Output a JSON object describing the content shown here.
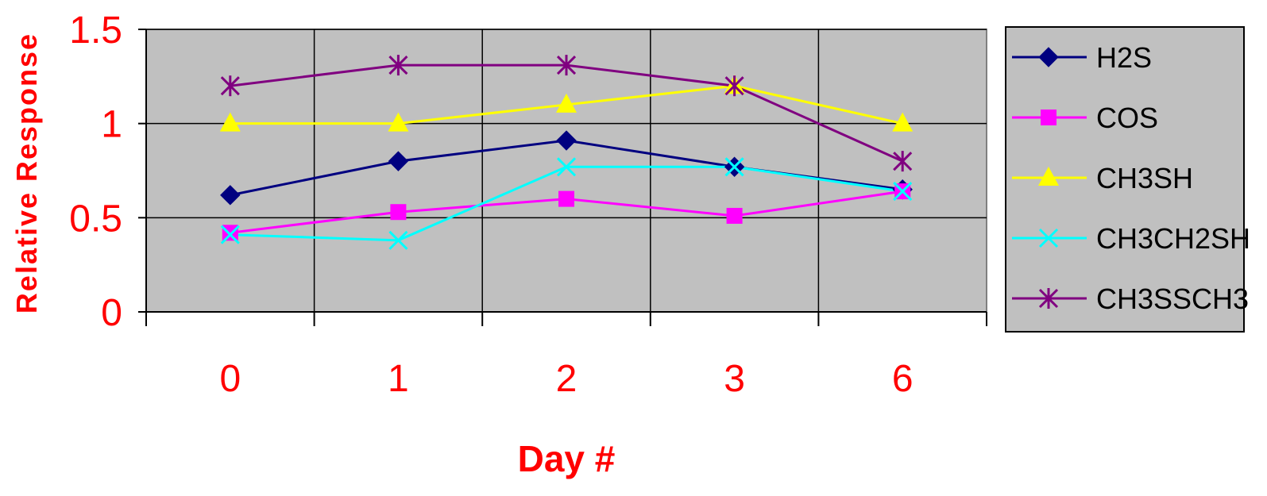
{
  "chart_data": {
    "type": "line",
    "title": "",
    "xlabel": "Day #",
    "ylabel": "Relative Response",
    "categories": [
      "0",
      "1",
      "2",
      "3",
      "6"
    ],
    "ylim": [
      0,
      1.5
    ],
    "yticks": [
      "0",
      "0.5",
      "1",
      "1.5"
    ],
    "grid": true,
    "legend_position": "right",
    "colors": {
      "plot_background": "#c0c0c0",
      "axis_text": "#ff0000",
      "grid": "#000000"
    },
    "series": [
      {
        "name": "H2S",
        "color": "#000080",
        "marker": "diamond",
        "values": [
          0.62,
          0.8,
          0.91,
          0.77,
          0.65
        ]
      },
      {
        "name": "COS",
        "color": "#ff00ff",
        "marker": "square",
        "values": [
          0.42,
          0.53,
          0.6,
          0.51,
          0.64
        ]
      },
      {
        "name": "CH3SH",
        "color": "#ffff00",
        "marker": "triangle",
        "values": [
          1.0,
          1.0,
          1.1,
          1.2,
          1.0
        ]
      },
      {
        "name": "CH3CH2SH",
        "color": "#00ffff",
        "marker": "x",
        "values": [
          0.41,
          0.38,
          0.77,
          0.77,
          0.64
        ]
      },
      {
        "name": "CH3SSCH3",
        "color": "#800080",
        "marker": "star",
        "values": [
          1.2,
          1.31,
          1.31,
          1.2,
          0.8
        ]
      }
    ]
  }
}
